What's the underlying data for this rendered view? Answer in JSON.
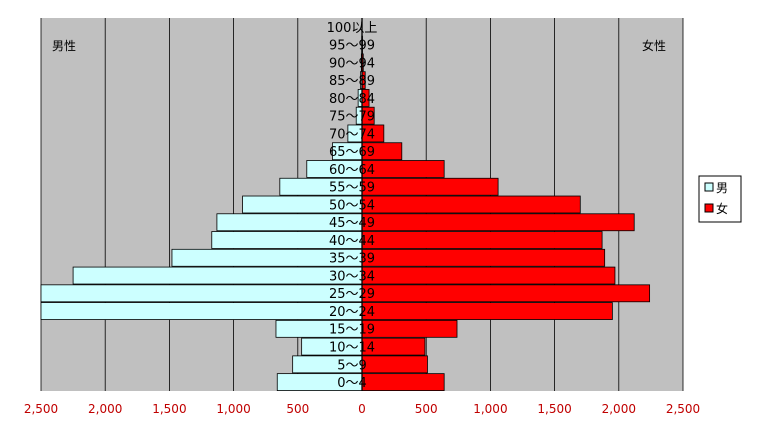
{
  "chart_data": {
    "type": "bar",
    "orientation": "horizontal-population-pyramid",
    "categories": [
      "0～4",
      "5～9",
      "10～14",
      "15～19",
      "20～24",
      "25～29",
      "30～34",
      "35～39",
      "40～44",
      "45～49",
      "50～54",
      "55～59",
      "60～64",
      "65～69",
      "70～74",
      "75～79",
      "80～84",
      "85～89",
      "90～94",
      "95～99",
      "100以上"
    ],
    "series": [
      {
        "name": "男",
        "color": "#ccffff",
        "values": [
          660,
          540,
          470,
          670,
          2500,
          2500,
          2250,
          1480,
          1170,
          1130,
          930,
          640,
          430,
          230,
          110,
          45,
          30,
          12,
          5,
          2,
          0
        ]
      },
      {
        "name": "女",
        "color": "#ff0000",
        "values": [
          640,
          510,
          490,
          740,
          1950,
          2240,
          1970,
          1890,
          1870,
          2120,
          1700,
          1060,
          640,
          310,
          170,
          95,
          55,
          25,
          10,
          4,
          1
        ]
      }
    ],
    "xlim": [
      -2500,
      2500
    ],
    "xticks": [
      "2,500",
      "2,000",
      "1,500",
      "1,000",
      "500",
      "0",
      "500",
      "1,000",
      "1,500",
      "2,000",
      "2,500"
    ],
    "left_label": "男性",
    "right_label": "女性",
    "legend_position": "right",
    "grid": true
  }
}
